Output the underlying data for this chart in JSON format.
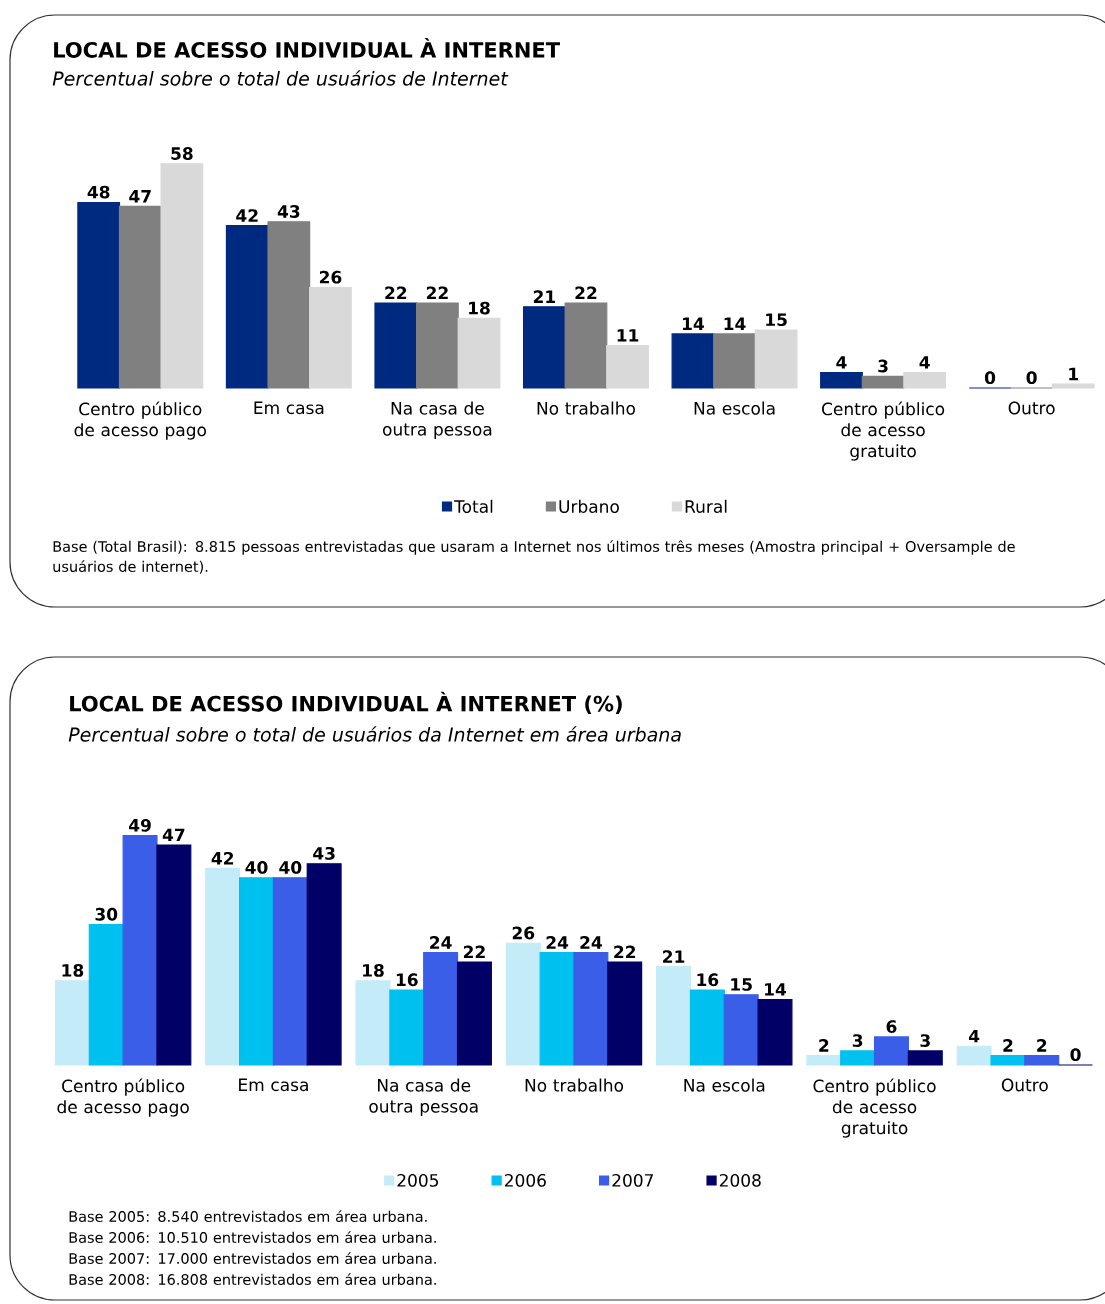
{
  "chart_data": [
    {
      "type": "bar",
      "title": "LOCAL DE ACESSO INDIVIDUAL À INTERNET",
      "subtitle": "Percentual sobre o total de usuários de Internet",
      "categories": [
        "Centro público de acesso pago",
        "Em casa",
        "Na casa de outra pessoa",
        "No trabalho",
        "Na escola",
        "Centro público de acesso gratuito",
        "Outro"
      ],
      "series": [
        {
          "name": "Total",
          "color": "#002a80",
          "values": [
            48,
            42,
            22,
            21,
            14,
            4,
            0
          ]
        },
        {
          "name": "Urbano",
          "color": "#808080",
          "values": [
            47,
            43,
            22,
            22,
            14,
            3,
            0
          ]
        },
        {
          "name": "Rural",
          "color": "#d9d9d9",
          "values": [
            58,
            26,
            18,
            11,
            15,
            4,
            1
          ]
        }
      ],
      "data_labels": true,
      "legend": "bottom",
      "annotations": [
        "Base (Total Brasil): 8.815 pessoas entrevistadas que usaram a Internet nos últimos três meses (Amostra principal + Oversample de usuários de internet)."
      ]
    },
    {
      "type": "bar",
      "title": "LOCAL DE ACESSO INDIVIDUAL À INTERNET (%)",
      "subtitle": "Percentual sobre o total de usuários da Internet em área urbana",
      "categories": [
        "Centro público de acesso pago",
        "Em casa",
        "Na casa de outra pessoa",
        "No trabalho",
        "Na escola",
        "Centro público de acesso gratuito",
        "Outro"
      ],
      "series": [
        {
          "name": "2005",
          "color": "#c4ecf8",
          "values": [
            18,
            42,
            18,
            26,
            21,
            2,
            4
          ]
        },
        {
          "name": "2006",
          "color": "#00c0f0",
          "values": [
            30,
            40,
            16,
            24,
            16,
            3,
            2
          ]
        },
        {
          "name": "2007",
          "color": "#3a5ee8",
          "values": [
            49,
            40,
            24,
            24,
            15,
            6,
            2
          ]
        },
        {
          "name": "2008",
          "color": "#000066",
          "values": [
            47,
            43,
            22,
            22,
            14,
            3,
            0
          ]
        }
      ],
      "data_labels": true,
      "legend": "bottom",
      "annotations": [
        "Base 2005: 8.540 entrevistados em área urbana.",
        "Base 2006: 10.510 entrevistados em área urbana.",
        "Base 2007: 17.000 entrevistados em área urbana.",
        "Base 2008: 16.808 entrevistados em área urbana."
      ]
    }
  ]
}
